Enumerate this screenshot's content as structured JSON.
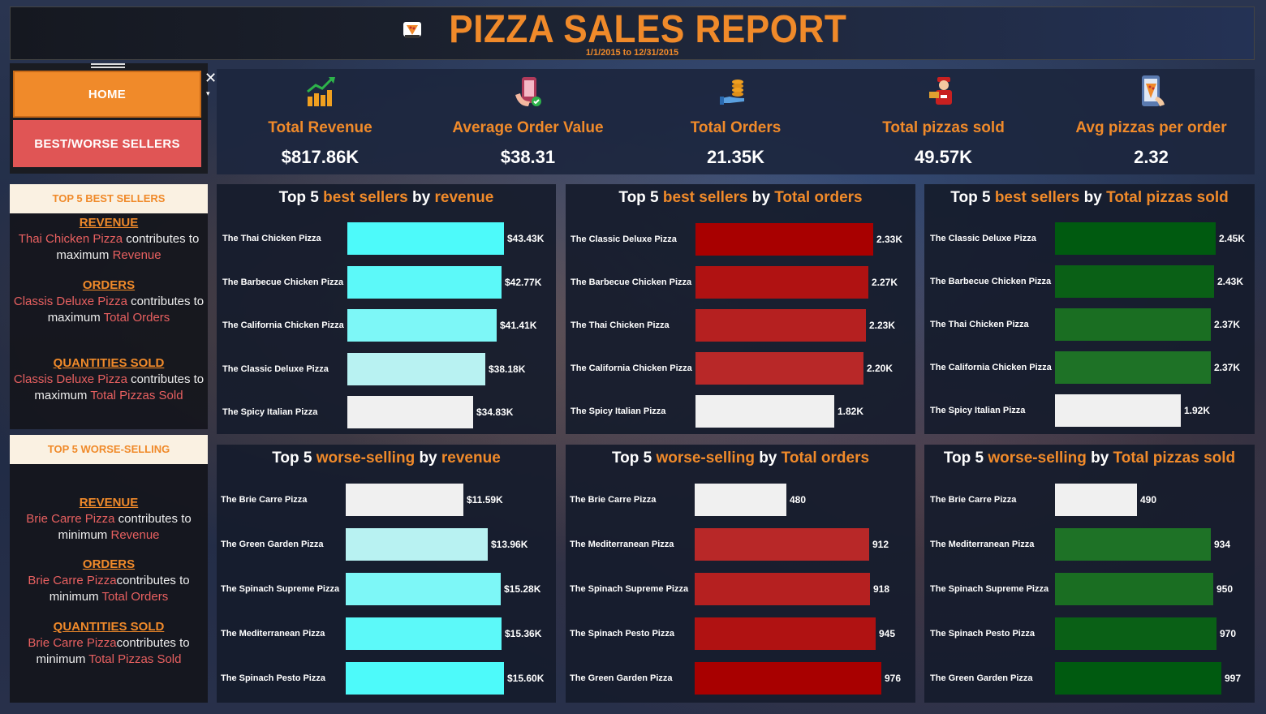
{
  "header": {
    "title": "PIZZA SALES REPORT",
    "date_range": "1/1/2015 to 12/31/2015"
  },
  "nav": {
    "home_label": "HOME",
    "best_worse_label": "BEST/WORSE SELLERS",
    "close_glyph": "✕",
    "chevron_glyph": "▾"
  },
  "kpis": [
    {
      "label": "Total Revenue",
      "value": "$817.86K",
      "icon": "money-growth-icon"
    },
    {
      "label": "Average Order Value",
      "value": "$38.31",
      "icon": "phone-payment-icon"
    },
    {
      "label": "Total Orders",
      "value": "21.35K",
      "icon": "coins-hand-icon"
    },
    {
      "label": "Total pizzas sold",
      "value": "49.57K",
      "icon": "delivery-person-icon"
    },
    {
      "label": "Avg pizzas per order",
      "value": "2.32",
      "icon": "phone-pizza-icon"
    }
  ],
  "best_summary": {
    "heading": "TOP 5 BEST SELLERS",
    "sections": [
      {
        "title": "REVENUE",
        "item": "Thai Chicken Pizza",
        "text": " contributes to maximum ",
        "metric": "Revenue"
      },
      {
        "title": "ORDERS",
        "item": "Classis Deluxe Pizza",
        "text": " contributes to maximum ",
        "metric": "Total Orders"
      },
      {
        "title": "QUANTITIES SOLD",
        "item": "Classis Deluxe Pizza",
        "text": " contributes to maximum ",
        "metric": "Total Pizzas Sold"
      }
    ]
  },
  "worse_summary": {
    "heading": "TOP 5 WORSE-SELLING",
    "sections": [
      {
        "title": "REVENUE",
        "item": "Brie Carre Pizza",
        "text": " contributes to minimum ",
        "metric": "Revenue"
      },
      {
        "title": "ORDERS",
        "item": "Brie Carre Pizza",
        "text": "contributes to minimum ",
        "metric": "Total Orders"
      },
      {
        "title": "QUANTITIES SOLD",
        "item": "Brie Carre Pizza",
        "text": "contributes to minimum ",
        "metric": "Total Pizzas Sold"
      }
    ]
  },
  "chart_data": [
    {
      "type": "bar",
      "title_parts": [
        "Top 5 ",
        "best sellers",
        " by ",
        "revenue"
      ],
      "categories": [
        "The Thai Chicken Pizza",
        "The Barbecue Chicken Pizza",
        "The California Chicken Pizza",
        "The Classic Deluxe Pizza",
        "The Spicy Italian Pizza"
      ],
      "values": [
        43.43,
        42.77,
        41.41,
        38.18,
        34.83
      ],
      "labels": [
        "$43.43K",
        "$42.77K",
        "$41.41K",
        "$38.18K",
        "$34.83K"
      ],
      "max": 43.43,
      "palette": "cyan"
    },
    {
      "type": "bar",
      "title_parts": [
        "Top 5 ",
        "best sellers",
        " by ",
        "Total orders"
      ],
      "categories": [
        "The Classic Deluxe Pizza",
        "The Barbecue Chicken Pizza",
        "The Thai Chicken Pizza",
        "The California Chicken Pizza",
        "The Spicy Italian Pizza"
      ],
      "values": [
        2.33,
        2.27,
        2.23,
        2.2,
        1.82
      ],
      "labels": [
        "2.33K",
        "2.27K",
        "2.23K",
        "2.20K",
        "1.82K"
      ],
      "max": 2.33,
      "palette": "red"
    },
    {
      "type": "bar",
      "title_parts": [
        "Top 5 ",
        "best sellers",
        " by ",
        "Total pizzas sold"
      ],
      "categories": [
        "The Classic Deluxe Pizza",
        "The Barbecue Chicken Pizza",
        "The Thai Chicken Pizza",
        "The California Chicken Pizza",
        "The Spicy Italian Pizza"
      ],
      "values": [
        2.45,
        2.43,
        2.37,
        2.37,
        1.92
      ],
      "labels": [
        "2.45K",
        "2.43K",
        "2.37K",
        "2.37K",
        "1.92K"
      ],
      "max": 2.45,
      "palette": "green"
    },
    {
      "type": "bar",
      "title_parts": [
        "Top 5 ",
        "worse-selling",
        " by ",
        "revenue"
      ],
      "categories": [
        "The Brie Carre Pizza",
        "The Green Garden Pizza",
        "The Spinach Supreme Pizza",
        "The Mediterranean Pizza",
        "The Spinach Pesto Pizza"
      ],
      "values": [
        11.59,
        13.96,
        15.28,
        15.36,
        15.6
      ],
      "labels": [
        "$11.59K",
        "$13.96K",
        "$15.28K",
        "$15.36K",
        "$15.60K"
      ],
      "max": 15.6,
      "palette": "cyan-rev"
    },
    {
      "type": "bar",
      "title_parts": [
        "Top 5 ",
        "worse-selling",
        " by ",
        "Total orders"
      ],
      "categories": [
        "The Brie Carre Pizza",
        "The Mediterranean Pizza",
        "The Spinach Supreme Pizza",
        "The Spinach Pesto Pizza",
        "The Green Garden Pizza"
      ],
      "values": [
        480,
        912,
        918,
        945,
        976
      ],
      "labels": [
        "480",
        "912",
        "918",
        "945",
        "976"
      ],
      "max": 976,
      "palette": "red-rev"
    },
    {
      "type": "bar",
      "title_parts": [
        "Top 5 ",
        "worse-selling",
        " by ",
        "Total pizzas sold"
      ],
      "categories": [
        "The Brie Carre Pizza",
        "The Mediterranean Pizza",
        "The Spinach Supreme Pizza",
        "The Spinach Pesto Pizza",
        "The Green Garden Pizza"
      ],
      "values": [
        490,
        934,
        950,
        970,
        997
      ],
      "labels": [
        "490",
        "934",
        "950",
        "970",
        "997"
      ],
      "max": 997,
      "palette": "green-rev"
    }
  ],
  "colors": {
    "accent": "#f08a2a",
    "highlight": "#e86060",
    "cyan": [
      "#4dfafa",
      "#5cf9f9",
      "#7df7f7",
      "#b8f2f2",
      "#f0f0f0"
    ],
    "red": [
      "#a80000",
      "#b01212",
      "#b52020",
      "#b82828",
      "#f0f0f0"
    ],
    "green": [
      "#005a10",
      "#0a6016",
      "#1a6e22",
      "#1e7226",
      "#f0f0f0"
    ]
  }
}
